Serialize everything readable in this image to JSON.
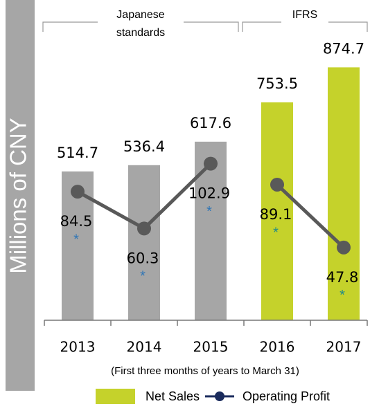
{
  "chart_data": {
    "type": "bar_line",
    "y_label": "Millions of CNY",
    "subtitle": "(First three months of years to March 31)",
    "categories": [
      "2013",
      "2014",
      "2015",
      "2016",
      "2017"
    ],
    "groups": [
      {
        "label": [
          "Japanese",
          "standards"
        ],
        "count": 3,
        "color": "#a6a6a6"
      },
      {
        "label": [
          "IFRS"
        ],
        "count": 2,
        "color": "#c5d22b"
      }
    ],
    "ylim": [
      0,
      1000
    ],
    "y2lim": [
      0,
      190
    ],
    "note_marker": "*",
    "series": [
      {
        "name": "Net Sales",
        "color": "#c5d22b",
        "values": [
          514.7,
          536.4,
          617.6,
          753.5,
          874.7
        ]
      },
      {
        "name": "Operating Profit",
        "color": "#595959",
        "axis": "y2",
        "values": [
          84.5,
          60.3,
          102.9,
          89.1,
          47.8
        ]
      }
    ]
  }
}
